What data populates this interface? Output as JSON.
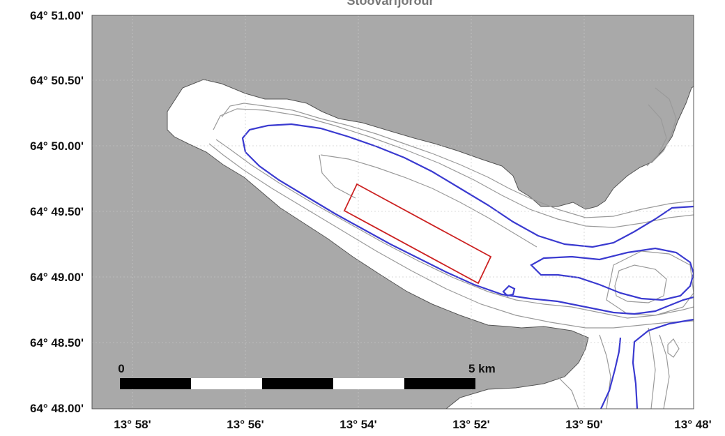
{
  "map": {
    "title": "Stöðvarfjörður",
    "lat_labels": [
      "64° 51.00'",
      "64° 50.50'",
      "64° 50.00'",
      "64° 49.50'",
      "64° 49.00'",
      "64° 48.50'",
      "64° 48.00'"
    ],
    "lon_labels": [
      "13° 58'",
      "13° 56'",
      "13° 54'",
      "13° 52'",
      "13° 50'",
      "13° 48'"
    ],
    "scale_bar": {
      "start_label": "0",
      "end_label": "5 km",
      "segments": 5
    },
    "colors": {
      "land": "#a9a9a9",
      "water": "#ffffff",
      "contour_thin": "#9a9a9a",
      "contour_bold": "#3a3ad0",
      "study_area": "#cc2222",
      "grid": "#c8c8c8",
      "frame": "#555555"
    }
  }
}
